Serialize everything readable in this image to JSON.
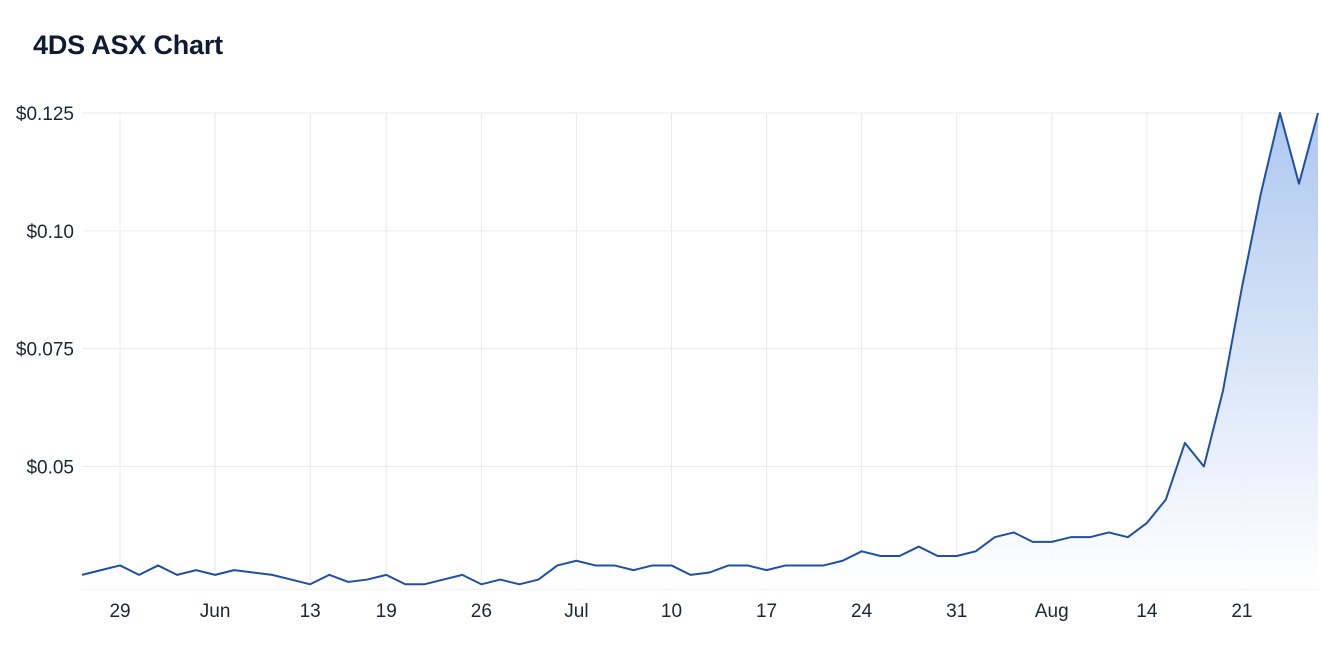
{
  "title": "4DS ASX Chart",
  "colors": {
    "line": "#1f4fa6",
    "fill_top": "#a9c5ef",
    "fill_bottom": "#ffffff",
    "grid": "#e8eaee",
    "text": "#1e2533"
  },
  "chart_data": {
    "type": "area",
    "title": "4DS ASX Chart",
    "xlabel": "",
    "ylabel": "",
    "ylim": [
      0.024,
      0.125
    ],
    "y_ticks": [
      {
        "value": 0.125,
        "label": "$0.125"
      },
      {
        "value": 0.1,
        "label": "$0.10"
      },
      {
        "value": 0.075,
        "label": "$0.075"
      },
      {
        "value": 0.05,
        "label": "$0.05"
      }
    ],
    "x_ticks": [
      {
        "date": "2023-05-29",
        "label": "29"
      },
      {
        "date": "2023-06-05",
        "label": "Jun"
      },
      {
        "date": "2023-06-13",
        "label": "13"
      },
      {
        "date": "2023-06-19",
        "label": "19"
      },
      {
        "date": "2023-06-26",
        "label": "26"
      },
      {
        "date": "2023-07-03",
        "label": "Jul"
      },
      {
        "date": "2023-07-10",
        "label": "10"
      },
      {
        "date": "2023-07-17",
        "label": "17"
      },
      {
        "date": "2023-07-24",
        "label": "24"
      },
      {
        "date": "2023-07-31",
        "label": "31"
      },
      {
        "date": "2023-08-07",
        "label": "Aug"
      },
      {
        "date": "2023-08-14",
        "label": "14"
      },
      {
        "date": "2023-08-21",
        "label": "21"
      }
    ],
    "grid": true,
    "legend": "none",
    "series": [
      {
        "x": [
          "2023-05-25",
          "2023-05-26",
          "2023-05-29",
          "2023-05-30",
          "2023-05-31",
          "2023-06-01",
          "2023-06-02",
          "2023-06-05",
          "2023-06-06",
          "2023-06-07",
          "2023-06-08",
          "2023-06-09",
          "2023-06-13",
          "2023-06-14",
          "2023-06-15",
          "2023-06-16",
          "2023-06-19",
          "2023-06-20",
          "2023-06-21",
          "2023-06-22",
          "2023-06-23",
          "2023-06-26",
          "2023-06-27",
          "2023-06-28",
          "2023-06-29",
          "2023-06-30",
          "2023-07-03",
          "2023-07-04",
          "2023-07-05",
          "2023-07-06",
          "2023-07-07",
          "2023-07-10",
          "2023-07-11",
          "2023-07-12",
          "2023-07-13",
          "2023-07-14",
          "2023-07-17",
          "2023-07-18",
          "2023-07-19",
          "2023-07-20",
          "2023-07-21",
          "2023-07-24",
          "2023-07-25",
          "2023-07-26",
          "2023-07-27",
          "2023-07-28",
          "2023-07-31",
          "2023-08-01",
          "2023-08-02",
          "2023-08-03",
          "2023-08-04",
          "2023-08-07",
          "2023-08-08",
          "2023-08-09",
          "2023-08-10",
          "2023-08-11",
          "2023-08-14",
          "2023-08-15",
          "2023-08-16",
          "2023-08-17",
          "2023-08-18",
          "2023-08-21",
          "2023-08-22",
          "2023-08-23",
          "2023-08-24",
          "2023-08-25"
        ],
        "values": [
          0.027,
          0.028,
          0.029,
          0.027,
          0.029,
          0.027,
          0.028,
          0.027,
          0.028,
          0.0275,
          0.027,
          0.026,
          0.025,
          0.027,
          0.0255,
          0.026,
          0.027,
          0.025,
          0.025,
          0.026,
          0.027,
          0.025,
          0.026,
          0.025,
          0.026,
          0.029,
          0.03,
          0.029,
          0.029,
          0.028,
          0.029,
          0.029,
          0.027,
          0.0275,
          0.029,
          0.029,
          0.028,
          0.029,
          0.029,
          0.029,
          0.03,
          0.032,
          0.031,
          0.031,
          0.033,
          0.031,
          0.031,
          0.032,
          0.035,
          0.036,
          0.034,
          0.034,
          0.035,
          0.035,
          0.036,
          0.035,
          0.038,
          0.043,
          0.055,
          0.05,
          0.066,
          0.088,
          0.108,
          0.125,
          0.11,
          0.125
        ]
      }
    ]
  }
}
